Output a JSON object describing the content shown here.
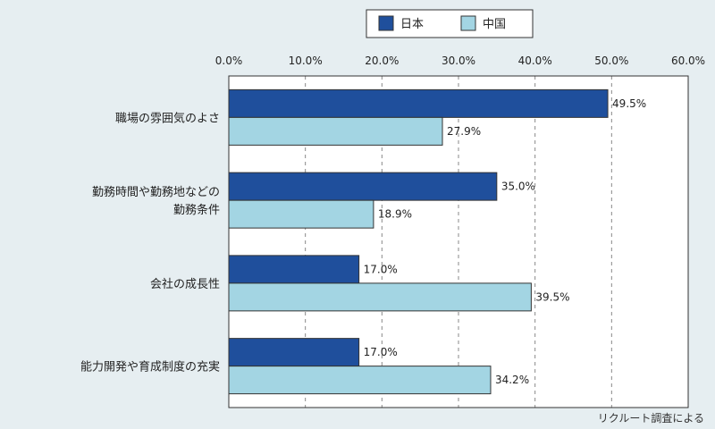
{
  "chart_data": {
    "type": "bar",
    "orientation": "horizontal",
    "categories": [
      [
        "職場の雰囲気のよさ"
      ],
      [
        "勤務時間や勤務地などの",
        "勤務条件"
      ],
      [
        "会社の成長性"
      ],
      [
        "能力開発や育成制度の充実"
      ]
    ],
    "series": [
      {
        "name": "日本",
        "color": "#1f4f9c",
        "values": [
          49.5,
          35.0,
          17.0,
          17.0
        ],
        "labels": [
          "49.5%",
          "35.0%",
          "17.0%",
          "17.0%"
        ]
      },
      {
        "name": "中国",
        "color": "#a3d5e3",
        "values": [
          27.9,
          18.9,
          39.5,
          34.2
        ],
        "labels": [
          "27.9%",
          "18.9%",
          "39.5%",
          "34.2%"
        ]
      }
    ],
    "xlim": [
      0,
      60
    ],
    "ticks": [
      0,
      10,
      20,
      30,
      40,
      50,
      60
    ],
    "tick_labels": [
      "0.0%",
      "10.0%",
      "20.0%",
      "30.0%",
      "40.0%",
      "50.0%",
      "60.0%"
    ],
    "grid": true,
    "legend": "top-center",
    "xlabel": "",
    "ylabel": ""
  },
  "source": "リクルート調査による"
}
